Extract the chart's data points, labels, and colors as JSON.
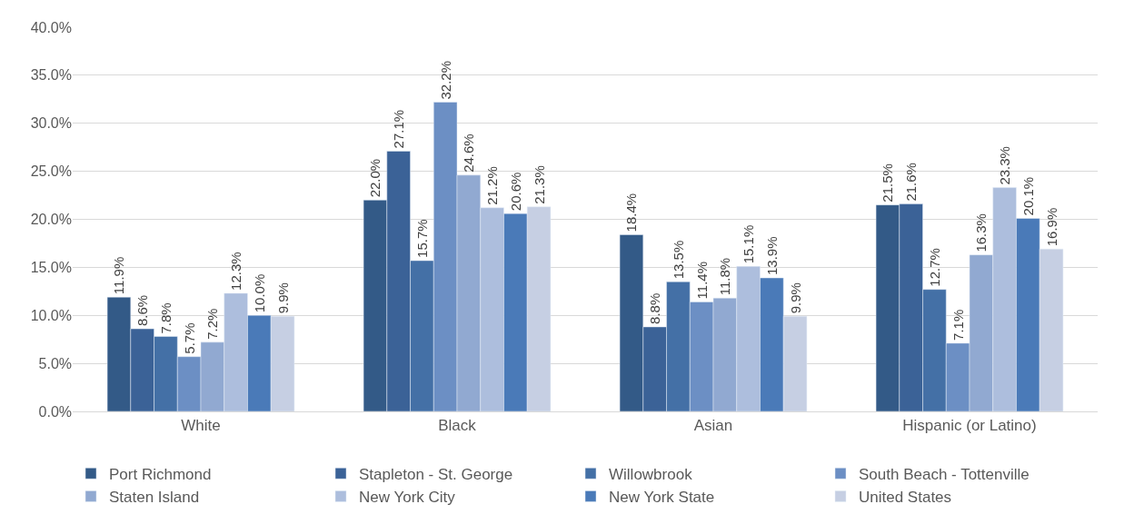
{
  "chart_data": {
    "type": "bar",
    "categories": [
      "White",
      "Black",
      "Asian",
      "Hispanic (or Latino)"
    ],
    "series": [
      {
        "name": "Port Richmond",
        "color": "#335a87",
        "values": [
          11.9,
          22.0,
          18.4,
          21.5
        ],
        "value_labels": [
          "11.9%",
          "22.0%",
          "18.4%",
          "21.5%"
        ]
      },
      {
        "name": "Stapleton - St. George",
        "color": "#3b6297",
        "values": [
          8.6,
          27.1,
          8.8,
          21.6
        ],
        "value_labels": [
          "8.6%",
          "27.1%",
          "8.8%",
          "21.6%"
        ]
      },
      {
        "name": "Willowbrook",
        "color": "#4470a6",
        "values": [
          7.8,
          15.7,
          13.5,
          12.7
        ],
        "value_labels": [
          "7.8%",
          "15.7%",
          "13.5%",
          "12.7%"
        ]
      },
      {
        "name": "South Beach - Tottenville",
        "color": "#6c8fc4",
        "values": [
          5.7,
          32.2,
          11.4,
          7.1
        ],
        "value_labels": [
          "5.7%",
          "32.2%",
          "11.4%",
          "7.1%"
        ]
      },
      {
        "name": "Staten Island",
        "color": "#91a9d1",
        "values": [
          7.2,
          24.6,
          11.8,
          16.3
        ],
        "value_labels": [
          "7.2%",
          "24.6%",
          "11.8%",
          "16.3%"
        ]
      },
      {
        "name": "New York City",
        "color": "#adbedd",
        "values": [
          12.3,
          21.2,
          15.1,
          23.3
        ],
        "value_labels": [
          "12.3%",
          "21.2%",
          "15.1%",
          "23.3%"
        ]
      },
      {
        "name": "New York State",
        "color": "#4a7ab8",
        "values": [
          10.0,
          20.6,
          13.9,
          20.1
        ],
        "value_labels": [
          "10.0%",
          "20.6%",
          "13.9%",
          "20.1%"
        ]
      },
      {
        "name": "United States",
        "color": "#c6cfe3",
        "values": [
          9.9,
          21.3,
          9.9,
          16.9
        ],
        "value_labels": [
          "9.9%",
          "21.3%",
          "9.9%",
          "16.9%"
        ]
      }
    ],
    "ylim": [
      0,
      40
    ],
    "yticks": [
      {
        "value": 0,
        "label": "0.0%"
      },
      {
        "value": 5,
        "label": "5.0%"
      },
      {
        "value": 10,
        "label": "10.0%"
      },
      {
        "value": 15,
        "label": "15.0%"
      },
      {
        "value": 20,
        "label": "20.0%"
      },
      {
        "value": 25,
        "label": "25.0%"
      },
      {
        "value": 30,
        "label": "30.0%"
      },
      {
        "value": 35,
        "label": "35.0%"
      },
      {
        "value": 40,
        "label": "40.0%"
      }
    ],
    "grid": "y",
    "legend": "bottom"
  }
}
